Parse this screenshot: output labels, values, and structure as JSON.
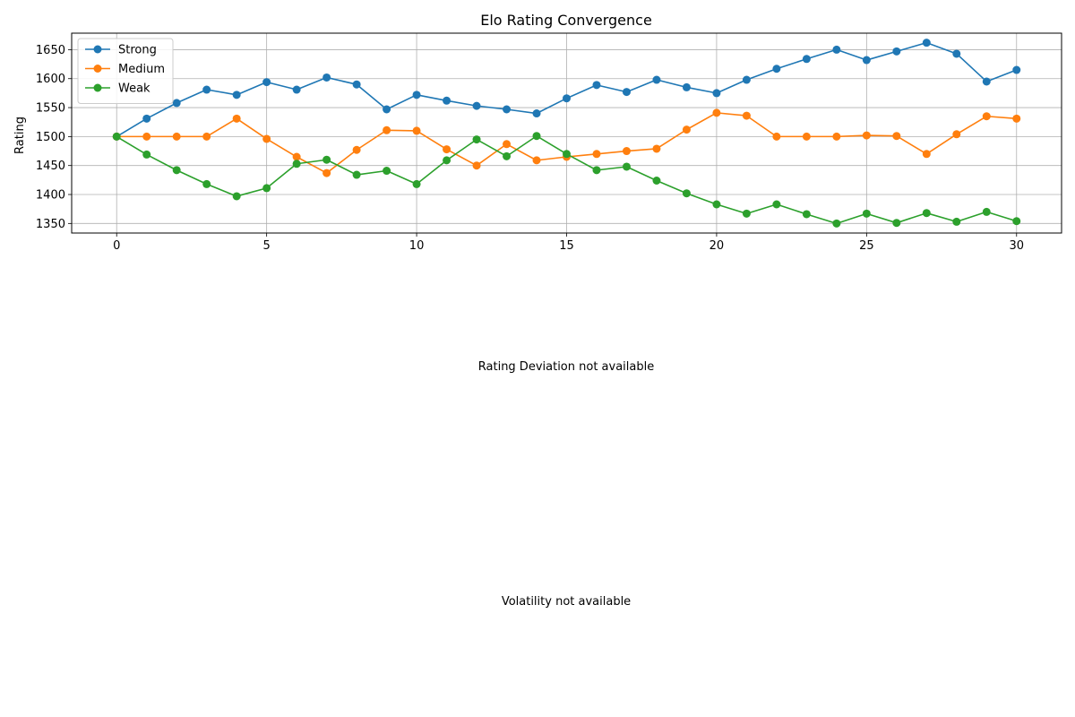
{
  "chart_data": {
    "type": "line",
    "title": "Elo Rating Convergence",
    "xlabel": "",
    "ylabel": "Rating",
    "xlim": [
      -1.5,
      31.5
    ],
    "ylim": [
      1333.5,
      1678.5
    ],
    "x_ticks": [
      0,
      5,
      10,
      15,
      20,
      25,
      30
    ],
    "y_ticks": [
      1350,
      1400,
      1450,
      1500,
      1550,
      1600,
      1650
    ],
    "grid": true,
    "legend_position": "upper-left",
    "x": [
      0,
      1,
      2,
      3,
      4,
      5,
      6,
      7,
      8,
      9,
      10,
      11,
      12,
      13,
      14,
      15,
      16,
      17,
      18,
      19,
      20,
      21,
      22,
      23,
      24,
      25,
      26,
      27,
      28,
      29,
      30
    ],
    "series": [
      {
        "name": "Strong",
        "color": "#1f77b4",
        "values": [
          1500,
          1531,
          1558,
          1581,
          1572,
          1594,
          1581,
          1602,
          1590,
          1547,
          1572,
          1562,
          1553,
          1547,
          1540,
          1566,
          1589,
          1577,
          1598,
          1585,
          1575,
          1598,
          1617,
          1634,
          1650,
          1632,
          1647,
          1662,
          1643,
          1595,
          1615
        ]
      },
      {
        "name": "Medium",
        "color": "#ff7f0e",
        "values": [
          1500,
          1500,
          1500,
          1500,
          1531,
          1496,
          1465,
          1437,
          1477,
          1511,
          1510,
          1478,
          1450,
          1487,
          1459,
          1465,
          1470,
          1475,
          1479,
          1512,
          1541,
          1536,
          1500,
          1500,
          1500,
          1502,
          1501,
          1470,
          1504,
          1535,
          1531
        ]
      },
      {
        "name": "Weak",
        "color": "#2ca02c",
        "values": [
          1500,
          1469,
          1442,
          1418,
          1397,
          1411,
          1453,
          1460,
          1434,
          1441,
          1418,
          1459,
          1495,
          1466,
          1501,
          1470,
          1442,
          1448,
          1424,
          1402,
          1383,
          1367,
          1383,
          1366,
          1350,
          1367,
          1351,
          1368,
          1353,
          1370,
          1354
        ]
      }
    ]
  },
  "messages": {
    "rating_deviation": "Rating Deviation not available",
    "volatility": "Volatility not available"
  }
}
